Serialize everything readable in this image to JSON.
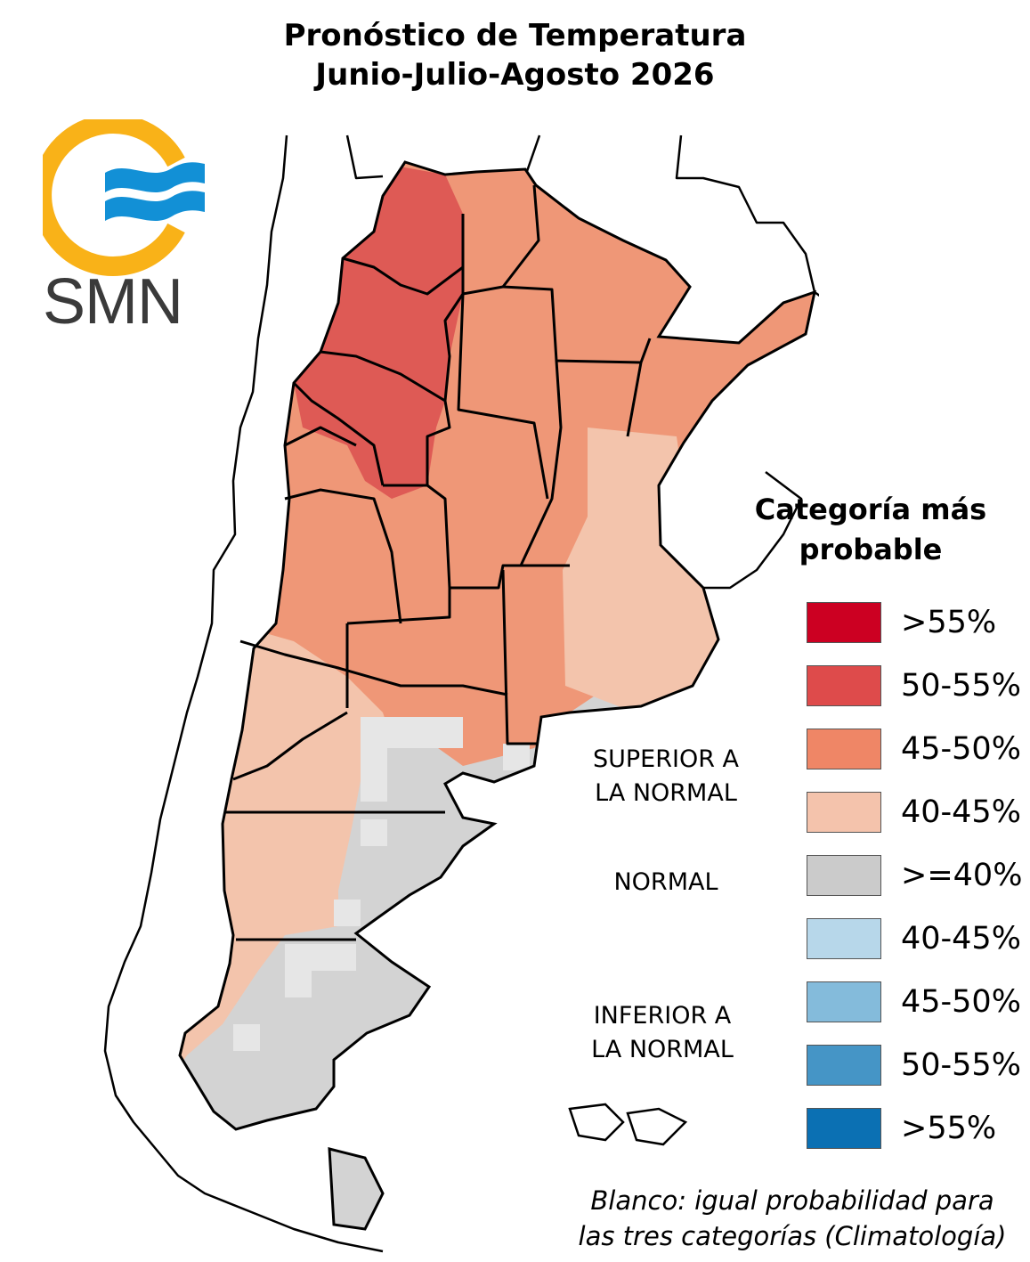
{
  "title": {
    "line1": "Pronóstico de Temperatura",
    "line2": "Junio-Julio-Agosto 2026"
  },
  "logo": {
    "text": "SMN",
    "ring_color": "#f9b218",
    "wave_color": "#1290d6"
  },
  "map": {
    "description_colors": {
      "strong_warm": "#de5a55",
      "warm": "#ef9777",
      "light_warm": "#f3c4ac",
      "normal": "#d3d3d3",
      "normal_light": "#e6e6e6"
    }
  },
  "categories": {
    "above": "SUPERIOR A\nLA NORMAL",
    "above_line1": "SUPERIOR A",
    "above_line2": "LA NORMAL",
    "normal": "NORMAL",
    "below_line1": "INFERIOR A",
    "below_line2": "LA NORMAL"
  },
  "legend": {
    "title_line1": "Categoría más",
    "title_line2": "probable",
    "items": [
      {
        "label": ">55%",
        "color": "#cc0022"
      },
      {
        "label": "50-55%",
        "color": "#de4b4b"
      },
      {
        "label": "45-50%",
        "color": "#ef8666"
      },
      {
        "label": "40-45%",
        "color": "#f4c3ac"
      },
      {
        "label": ">=40%",
        "color": "#cbcbcb"
      },
      {
        "label": "40-45%",
        "color": "#b7d7ea"
      },
      {
        "label": "45-50%",
        "color": "#84bbdb"
      },
      {
        "label": "50-55%",
        "color": "#4595c6"
      },
      {
        "label": ">55%",
        "color": "#0b70b3"
      }
    ]
  },
  "footnote": {
    "line1": "Blanco: igual probabilidad para",
    "line2": "las tres categorías (Climatología)"
  }
}
